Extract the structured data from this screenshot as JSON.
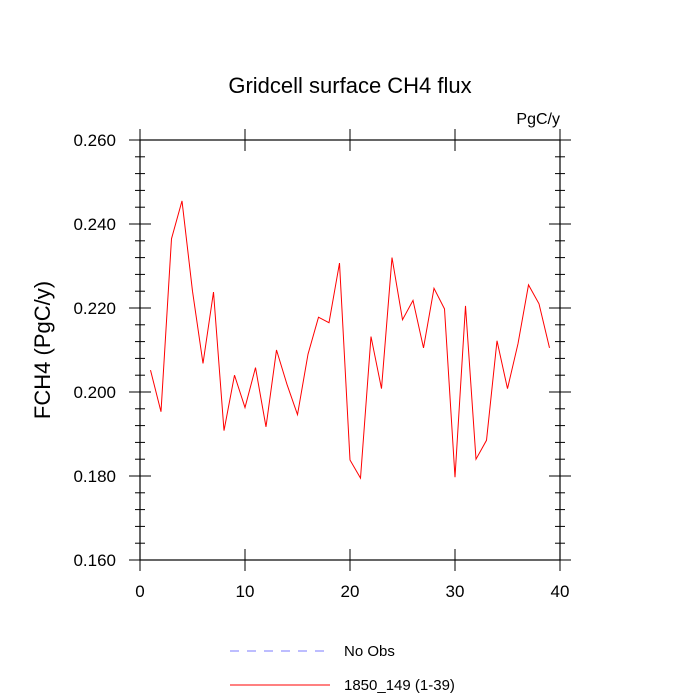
{
  "chart_data": {
    "type": "line",
    "title": "Gridcell surface CH4 flux",
    "units": "PgC/y",
    "ylabel": "FCH4  (PgC/y)",
    "xlabel": "",
    "xlim": [
      0,
      40
    ],
    "ylim": [
      0.16,
      0.26
    ],
    "xticks": [
      0,
      10,
      20,
      30,
      40
    ],
    "yticks": [
      0.16,
      0.18,
      0.2,
      0.22,
      0.24,
      0.26
    ],
    "xtick_labels": [
      "0",
      "10",
      "20",
      "30",
      "40"
    ],
    "ytick_labels": [
      "0.160",
      "0.180",
      "0.200",
      "0.220",
      "0.240",
      "0.260"
    ],
    "grid": false,
    "legend": "bottom",
    "series": [
      {
        "name": "1850_149 (1-39)",
        "color": "#ff0000",
        "style": "solid",
        "x": [
          1,
          2,
          3,
          4,
          5,
          6,
          7,
          8,
          9,
          10,
          11,
          12,
          13,
          14,
          15,
          16,
          17,
          18,
          19,
          20,
          21,
          22,
          23,
          24,
          25,
          26,
          27,
          28,
          29,
          30,
          31,
          32,
          33,
          34,
          35,
          36,
          37,
          38,
          39
        ],
        "values": [
          0.2052,
          0.1953,
          0.2365,
          0.2455,
          0.224,
          0.2068,
          0.2238,
          0.1908,
          0.204,
          0.1963,
          0.2058,
          0.1917,
          0.21,
          0.2018,
          0.1946,
          0.209,
          0.2178,
          0.2165,
          0.2307,
          0.1838,
          0.1795,
          0.2132,
          0.2008,
          0.232,
          0.2172,
          0.2218,
          0.2105,
          0.2247,
          0.2198,
          0.1797,
          0.2205,
          0.184,
          0.1885,
          0.2122,
          0.2008,
          0.2115,
          0.2255,
          0.221,
          0.2105
        ]
      },
      {
        "name": "No Obs",
        "color": "#7b7bff",
        "style": "dashed",
        "x": [],
        "values": []
      }
    ]
  }
}
